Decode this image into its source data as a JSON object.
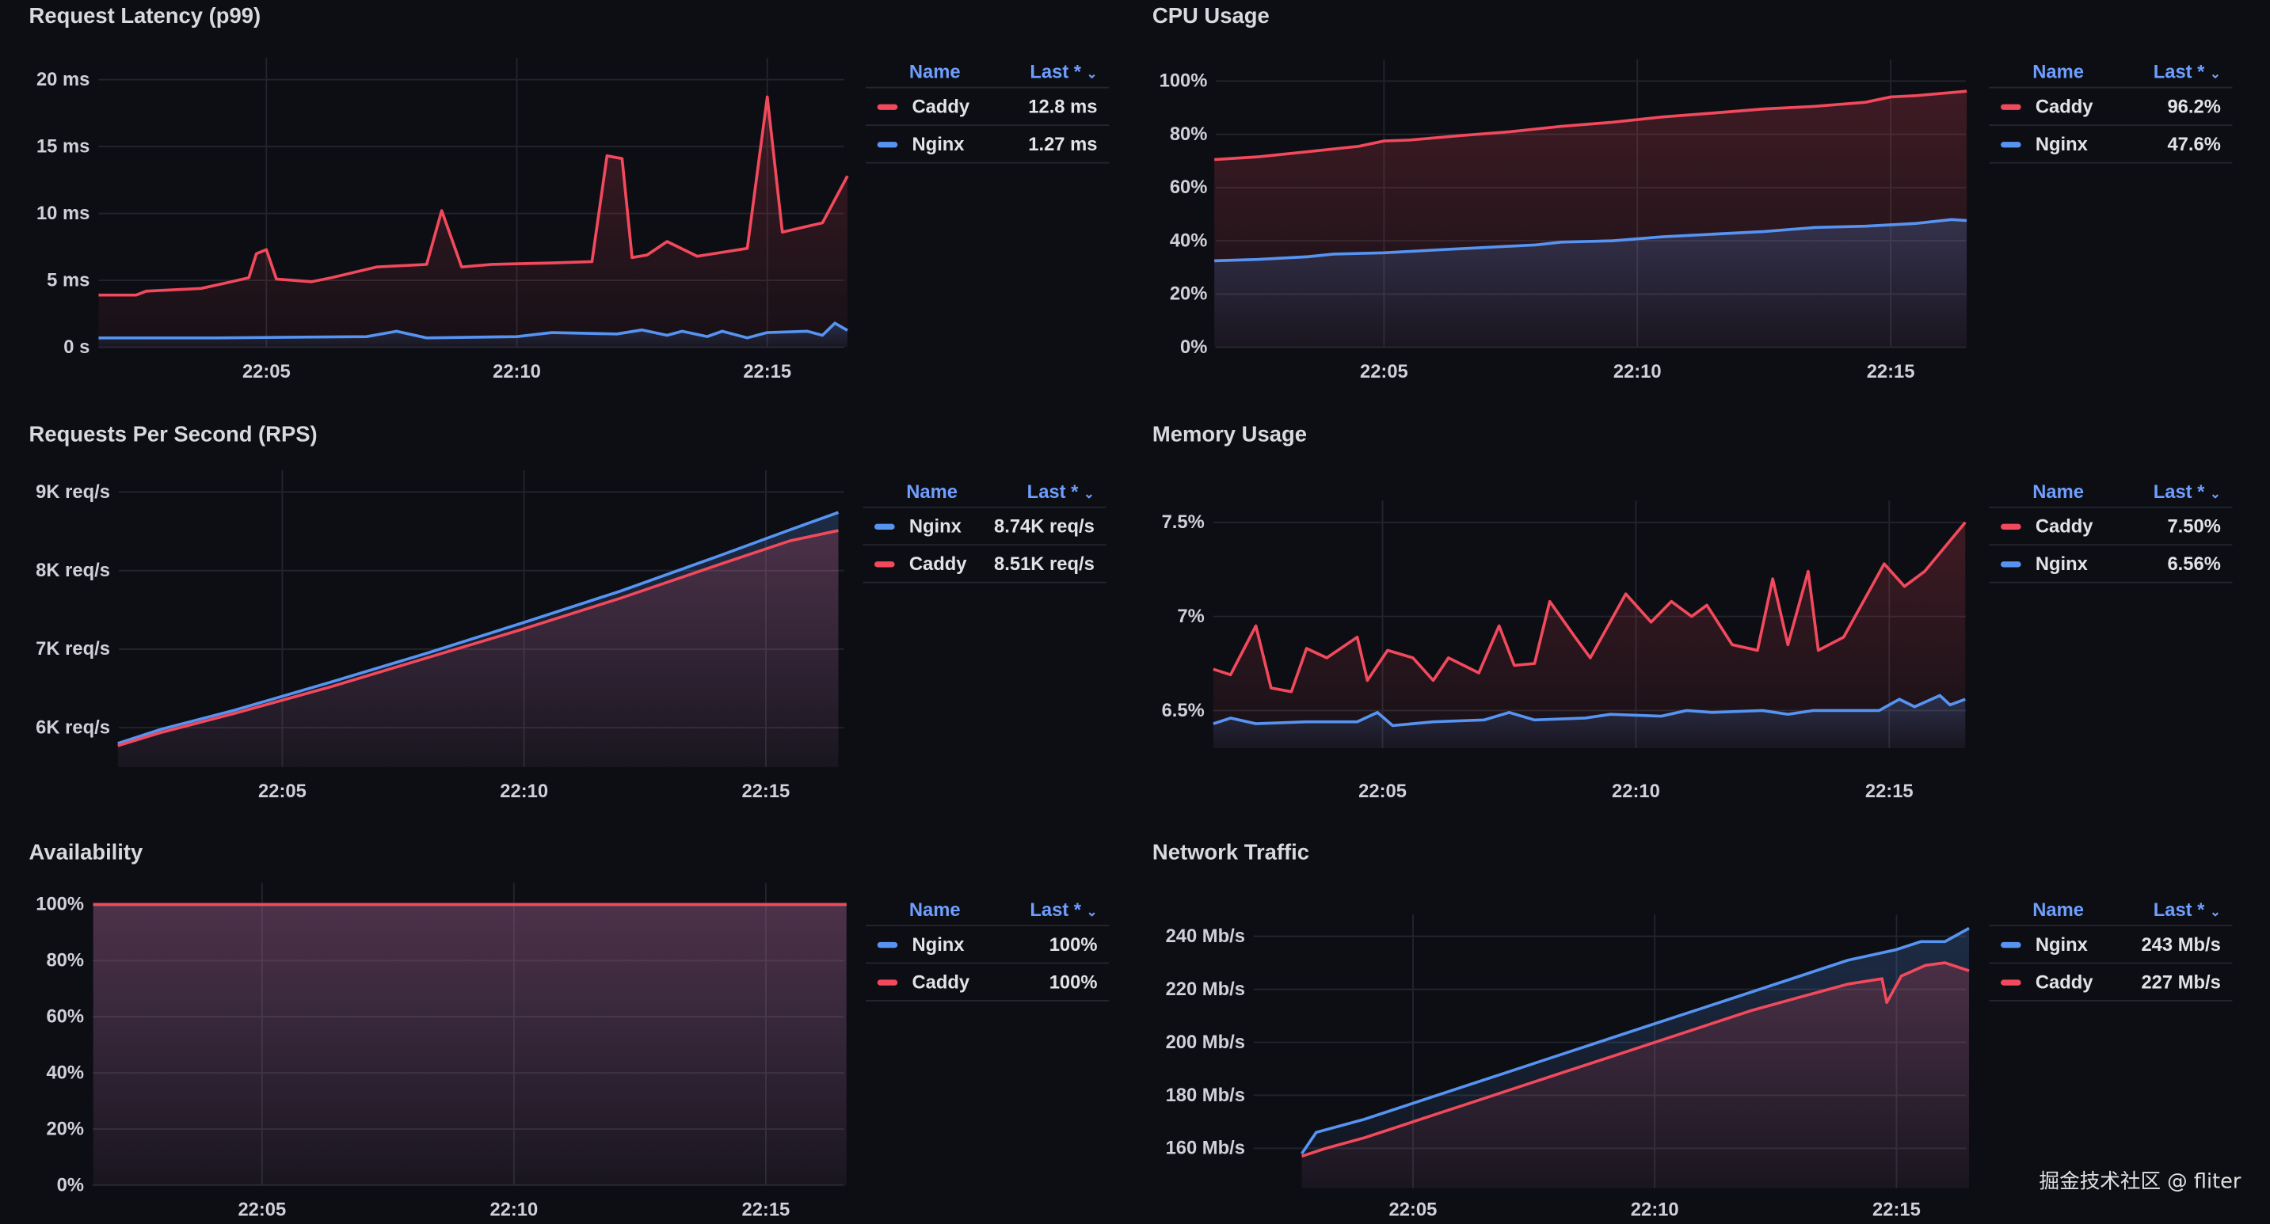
{
  "legend_header": {
    "name": "Name",
    "last": "Last *",
    "sort_icon": "chevron-down-icon"
  },
  "colors": {
    "Caddy": "#f2495c",
    "Nginx": "#5794f2"
  },
  "watermark": "掘金技术社区 @ fliter",
  "chart_data": [
    {
      "type": "line",
      "title": "Request Latency (p99)",
      "xlabel": "",
      "ylabel": "",
      "ylim": [
        0,
        20
      ],
      "grid": true,
      "legend_placement": "right",
      "yticks": [
        0,
        5,
        10,
        15,
        20
      ],
      "ytick_labels": [
        "0 s",
        "5 ms",
        "10 ms",
        "15 ms",
        "20 ms"
      ],
      "xticks": [
        5,
        10,
        15
      ],
      "xtick_labels": [
        "22:05",
        "22:10",
        "22:15"
      ],
      "x_unit": "minutes after 22:00",
      "legend": [
        {
          "name": "Caddy",
          "last": "12.8 ms"
        },
        {
          "name": "Nginx",
          "last": "1.27 ms"
        }
      ],
      "series": [
        {
          "name": "Caddy",
          "points": [
            [
              1.65,
              3.9
            ],
            [
              2.4,
              3.9
            ],
            [
              2.6,
              4.2
            ],
            [
              3.7,
              4.4
            ],
            [
              4.3,
              4.9
            ],
            [
              4.65,
              5.2
            ],
            [
              4.8,
              7.0
            ],
            [
              5.0,
              7.3
            ],
            [
              5.2,
              5.1
            ],
            [
              5.9,
              4.9
            ],
            [
              6.3,
              5.2
            ],
            [
              7.2,
              6.0
            ],
            [
              8.2,
              6.2
            ],
            [
              8.5,
              10.2
            ],
            [
              8.9,
              6.0
            ],
            [
              9.5,
              6.2
            ],
            [
              10.7,
              6.3
            ],
            [
              11.5,
              6.4
            ],
            [
              11.8,
              14.3
            ],
            [
              12.1,
              14.1
            ],
            [
              12.3,
              6.7
            ],
            [
              12.6,
              6.9
            ],
            [
              13.0,
              7.9
            ],
            [
              13.6,
              6.8
            ],
            [
              14.6,
              7.4
            ],
            [
              15.0,
              18.7
            ],
            [
              15.3,
              8.6
            ],
            [
              16.1,
              9.3
            ],
            [
              16.6,
              12.8
            ]
          ]
        },
        {
          "name": "Nginx",
          "points": [
            [
              1.65,
              0.7
            ],
            [
              4,
              0.7
            ],
            [
              7,
              0.8
            ],
            [
              7.6,
              1.2
            ],
            [
              8.2,
              0.7
            ],
            [
              10,
              0.8
            ],
            [
              10.7,
              1.1
            ],
            [
              12,
              1.0
            ],
            [
              12.5,
              1.3
            ],
            [
              13,
              0.9
            ],
            [
              13.3,
              1.2
            ],
            [
              13.8,
              0.8
            ],
            [
              14.1,
              1.2
            ],
            [
              14.6,
              0.7
            ],
            [
              15,
              1.1
            ],
            [
              15.8,
              1.2
            ],
            [
              16.1,
              0.9
            ],
            [
              16.35,
              1.8
            ],
            [
              16.6,
              1.27
            ]
          ]
        }
      ]
    },
    {
      "type": "line",
      "title": "CPU Usage",
      "xlabel": "",
      "ylabel": "",
      "ylim": [
        0,
        100
      ],
      "grid": true,
      "legend_placement": "right",
      "yticks": [
        0,
        20,
        40,
        60,
        80,
        100
      ],
      "ytick_labels": [
        "0%",
        "20%",
        "40%",
        "60%",
        "80%",
        "100%"
      ],
      "xticks": [
        5,
        10,
        15
      ],
      "xtick_labels": [
        "22:05",
        "22:10",
        "22:15"
      ],
      "x_unit": "minutes after 22:00",
      "legend": [
        {
          "name": "Caddy",
          "last": "96.2%"
        },
        {
          "name": "Nginx",
          "last": "47.6%"
        }
      ],
      "series": [
        {
          "name": "Caddy",
          "points": [
            [
              1.65,
              70.5
            ],
            [
              2.5,
              71.5
            ],
            [
              3.5,
              73.5
            ],
            [
              4.5,
              75.5
            ],
            [
              5.0,
              77.5
            ],
            [
              5.5,
              77.8
            ],
            [
              6.5,
              79.5
            ],
            [
              7.5,
              81
            ],
            [
              8.5,
              83
            ],
            [
              9.5,
              84.5
            ],
            [
              10.5,
              86.5
            ],
            [
              11.5,
              88
            ],
            [
              12.5,
              89.5
            ],
            [
              13.5,
              90.5
            ],
            [
              14.5,
              92
            ],
            [
              15.0,
              94
            ],
            [
              15.5,
              94.5
            ],
            [
              16.5,
              96.2
            ]
          ]
        },
        {
          "name": "Nginx",
          "points": [
            [
              1.65,
              32.5
            ],
            [
              2.5,
              33
            ],
            [
              3.5,
              34
            ],
            [
              4.0,
              35
            ],
            [
              5.0,
              35.5
            ],
            [
              6.0,
              36.5
            ],
            [
              7.0,
              37.5
            ],
            [
              8.0,
              38.5
            ],
            [
              8.5,
              39.5
            ],
            [
              9.5,
              40
            ],
            [
              10.5,
              41.5
            ],
            [
              11.5,
              42.5
            ],
            [
              12.5,
              43.5
            ],
            [
              13.5,
              45
            ],
            [
              14.5,
              45.5
            ],
            [
              15.5,
              46.5
            ],
            [
              16.2,
              48
            ],
            [
              16.5,
              47.6
            ]
          ]
        }
      ]
    },
    {
      "type": "line",
      "title": "Requests Per Second (RPS)",
      "xlabel": "",
      "ylabel": "",
      "ylim": [
        5.5,
        9
      ],
      "grid": true,
      "legend_placement": "right",
      "yticks": [
        6,
        7,
        8,
        9
      ],
      "ytick_labels": [
        "6K req/s",
        "7K req/s",
        "8K req/s",
        "9K req/s"
      ],
      "xticks": [
        5,
        10,
        15
      ],
      "xtick_labels": [
        "22:05",
        "22:10",
        "22:15"
      ],
      "x_unit": "minutes after 22:00",
      "legend": [
        {
          "name": "Nginx",
          "last": "8.74K req/s"
        },
        {
          "name": "Caddy",
          "last": "8.51K req/s"
        }
      ],
      "series": [
        {
          "name": "Nginx",
          "points": [
            [
              1.6,
              5.8
            ],
            [
              2.5,
              5.98
            ],
            [
              4,
              6.22
            ],
            [
              6,
              6.58
            ],
            [
              8,
              6.95
            ],
            [
              10,
              7.34
            ],
            [
              12,
              7.74
            ],
            [
              14,
              8.18
            ],
            [
              15.5,
              8.52
            ],
            [
              16.5,
              8.74
            ]
          ]
        },
        {
          "name": "Caddy",
          "points": [
            [
              1.6,
              5.77
            ],
            [
              2.5,
              5.94
            ],
            [
              4,
              6.18
            ],
            [
              6,
              6.52
            ],
            [
              8,
              6.89
            ],
            [
              10,
              7.26
            ],
            [
              12,
              7.65
            ],
            [
              14,
              8.07
            ],
            [
              15.5,
              8.38
            ],
            [
              16.5,
              8.51
            ]
          ]
        }
      ]
    },
    {
      "type": "line",
      "title": "Memory Usage",
      "xlabel": "",
      "ylabel": "",
      "ylim": [
        6.3,
        7.5
      ],
      "grid": true,
      "legend_placement": "right",
      "yticks": [
        6.5,
        7,
        7.5
      ],
      "ytick_labels": [
        "6.5%",
        "7%",
        "7.5%"
      ],
      "xticks": [
        5,
        10,
        15
      ],
      "xtick_labels": [
        "22:05",
        "22:10",
        "22:15"
      ],
      "x_unit": "minutes after 22:00",
      "legend": [
        {
          "name": "Caddy",
          "last": "7.50%"
        },
        {
          "name": "Nginx",
          "last": "6.56%"
        }
      ],
      "series": [
        {
          "name": "Caddy",
          "points": [
            [
              1.66,
              6.72
            ],
            [
              2.0,
              6.69
            ],
            [
              2.5,
              6.95
            ],
            [
              2.8,
              6.62
            ],
            [
              3.2,
              6.6
            ],
            [
              3.5,
              6.83
            ],
            [
              3.9,
              6.78
            ],
            [
              4.5,
              6.89
            ],
            [
              4.7,
              6.66
            ],
            [
              5.1,
              6.82
            ],
            [
              5.6,
              6.78
            ],
            [
              6.0,
              6.66
            ],
            [
              6.3,
              6.78
            ],
            [
              6.9,
              6.7
            ],
            [
              7.3,
              6.95
            ],
            [
              7.6,
              6.74
            ],
            [
              8.0,
              6.75
            ],
            [
              8.3,
              7.08
            ],
            [
              8.8,
              6.89
            ],
            [
              9.1,
              6.78
            ],
            [
              9.8,
              7.12
            ],
            [
              10.3,
              6.97
            ],
            [
              10.7,
              7.08
            ],
            [
              11.1,
              7.0
            ],
            [
              11.4,
              7.06
            ],
            [
              11.9,
              6.85
            ],
            [
              12.4,
              6.82
            ],
            [
              12.7,
              7.2
            ],
            [
              13.0,
              6.85
            ],
            [
              13.4,
              7.24
            ],
            [
              13.6,
              6.82
            ],
            [
              14.1,
              6.89
            ],
            [
              14.9,
              7.28
            ],
            [
              15.3,
              7.16
            ],
            [
              15.7,
              7.24
            ],
            [
              16.5,
              7.5
            ]
          ]
        },
        {
          "name": "Nginx",
          "points": [
            [
              1.66,
              6.43
            ],
            [
              2.0,
              6.46
            ],
            [
              2.5,
              6.43
            ],
            [
              3.5,
              6.44
            ],
            [
              4.5,
              6.44
            ],
            [
              4.9,
              6.49
            ],
            [
              5.2,
              6.42
            ],
            [
              6.0,
              6.44
            ],
            [
              7.0,
              6.45
            ],
            [
              7.5,
              6.49
            ],
            [
              8.0,
              6.45
            ],
            [
              9.0,
              6.46
            ],
            [
              9.5,
              6.48
            ],
            [
              10.5,
              6.47
            ],
            [
              11.0,
              6.5
            ],
            [
              11.5,
              6.49
            ],
            [
              12.5,
              6.5
            ],
            [
              13.0,
              6.48
            ],
            [
              13.5,
              6.5
            ],
            [
              14.0,
              6.5
            ],
            [
              14.8,
              6.5
            ],
            [
              15.2,
              6.56
            ],
            [
              15.5,
              6.52
            ],
            [
              16.0,
              6.58
            ],
            [
              16.2,
              6.53
            ],
            [
              16.5,
              6.56
            ]
          ]
        }
      ]
    },
    {
      "type": "line",
      "title": "Availability",
      "xlabel": "",
      "ylabel": "",
      "ylim": [
        0,
        100
      ],
      "grid": true,
      "legend_placement": "right",
      "yticks": [
        0,
        20,
        40,
        60,
        80,
        100
      ],
      "ytick_labels": [
        "0%",
        "20%",
        "40%",
        "60%",
        "80%",
        "100%"
      ],
      "xticks": [
        5,
        10,
        15
      ],
      "xtick_labels": [
        "22:05",
        "22:10",
        "22:15"
      ],
      "x_unit": "minutes after 22:00",
      "legend": [
        {
          "name": "Nginx",
          "last": "100%"
        },
        {
          "name": "Caddy",
          "last": "100%"
        }
      ],
      "series": [
        {
          "name": "Nginx",
          "points": [
            [
              1.65,
              100
            ],
            [
              16.6,
              100
            ]
          ]
        },
        {
          "name": "Caddy",
          "points": [
            [
              1.65,
              100
            ],
            [
              16.6,
              100
            ]
          ]
        }
      ]
    },
    {
      "type": "line",
      "title": "Network Traffic",
      "xlabel": "",
      "ylabel": "",
      "ylim": [
        145,
        240
      ],
      "grid": true,
      "legend_placement": "right",
      "yticks": [
        160,
        180,
        200,
        220,
        240
      ],
      "ytick_labels": [
        "160 Mb/s",
        "180 Mb/s",
        "200 Mb/s",
        "220 Mb/s",
        "240 Mb/s"
      ],
      "xticks": [
        5,
        10,
        15
      ],
      "xtick_labels": [
        "22:05",
        "22:10",
        "22:15"
      ],
      "x_unit": "minutes after 22:00",
      "legend": [
        {
          "name": "Nginx",
          "last": "243 Mb/s"
        },
        {
          "name": "Caddy",
          "last": "227 Mb/s"
        }
      ],
      "series": [
        {
          "name": "Nginx",
          "points": [
            [
              2.7,
              158
            ],
            [
              3.0,
              166
            ],
            [
              4,
              171
            ],
            [
              5,
              177
            ],
            [
              6,
              183
            ],
            [
              7,
              189
            ],
            [
              8,
              195
            ],
            [
              9,
              201
            ],
            [
              10,
              207
            ],
            [
              11,
              213
            ],
            [
              12,
              219
            ],
            [
              13,
              225
            ],
            [
              14,
              231
            ],
            [
              15,
              235
            ],
            [
              15.5,
              238
            ],
            [
              16,
              238
            ],
            [
              16.5,
              243
            ]
          ]
        },
        {
          "name": "Caddy",
          "points": [
            [
              2.7,
              157
            ],
            [
              3.2,
              160
            ],
            [
              4,
              164
            ],
            [
              5,
              170
            ],
            [
              6,
              176
            ],
            [
              7,
              182
            ],
            [
              8,
              188
            ],
            [
              9,
              194
            ],
            [
              10,
              200
            ],
            [
              11,
              206
            ],
            [
              12,
              212
            ],
            [
              13,
              217
            ],
            [
              14,
              222
            ],
            [
              14.7,
              224
            ],
            [
              14.8,
              215
            ],
            [
              15.1,
              225
            ],
            [
              15.6,
              229
            ],
            [
              16,
              230
            ],
            [
              16.5,
              227
            ]
          ]
        }
      ]
    }
  ]
}
